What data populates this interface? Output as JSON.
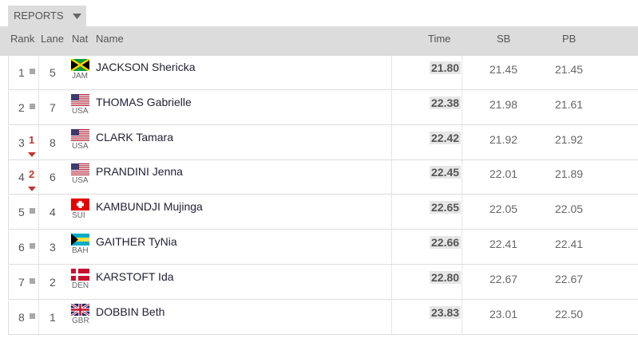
{
  "reports_button": "REPORTS",
  "header": {
    "rank": "Rank",
    "lane": "Lane",
    "nat": "Nat",
    "name": "Name",
    "time": "Time",
    "sb": "SB",
    "pb": "PB"
  },
  "rows": [
    {
      "rank": "1",
      "lane": "5",
      "nat": "JAM",
      "name": "JACKSON Shericka",
      "time": "21.80",
      "sb": "21.45",
      "pb": "21.45"
    },
    {
      "rank": "2",
      "lane": "7",
      "nat": "USA",
      "name": "THOMAS Gabrielle",
      "time": "22.38",
      "sb": "21.98",
      "pb": "21.61"
    },
    {
      "rank": "3",
      "change": "1",
      "lane": "8",
      "nat": "USA",
      "name": "CLARK Tamara",
      "time": "22.42",
      "sb": "21.92",
      "pb": "21.92"
    },
    {
      "rank": "4",
      "change": "2",
      "lane": "6",
      "nat": "USA",
      "name": "PRANDINI Jenna",
      "time": "22.45",
      "sb": "22.01",
      "pb": "21.89"
    },
    {
      "rank": "5",
      "lane": "4",
      "nat": "SUI",
      "name": "KAMBUNDJI Mujinga",
      "time": "22.65",
      "sb": "22.05",
      "pb": "22.05"
    },
    {
      "rank": "6",
      "lane": "3",
      "nat": "BAH",
      "name": "GAITHER TyNia",
      "time": "22.66",
      "sb": "22.41",
      "pb": "22.41"
    },
    {
      "rank": "7",
      "lane": "2",
      "nat": "DEN",
      "name": "KARSTOFT Ida",
      "time": "22.80",
      "sb": "22.67",
      "pb": "22.67"
    },
    {
      "rank": "8",
      "lane": "1",
      "nat": "GBR",
      "name": "DOBBIN Beth",
      "time": "23.83",
      "sb": "23.01",
      "pb": "22.50"
    }
  ]
}
